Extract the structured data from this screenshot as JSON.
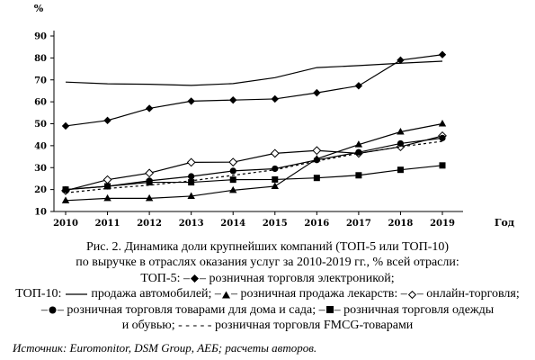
{
  "chart_data": {
    "type": "line",
    "x": [
      2010,
      2011,
      2012,
      2013,
      2014,
      2015,
      2016,
      2017,
      2018,
      2019
    ],
    "xlabel": "Год",
    "ylabel": "%",
    "ylim": [
      10,
      90
    ],
    "yticks": [
      10,
      20,
      30,
      40,
      50,
      60,
      70,
      80,
      90
    ],
    "grid": false,
    "series": [
      {
        "key": "auto",
        "marker": "none",
        "dash": "solid",
        "values": [
          69,
          68.2,
          68,
          67.5,
          68.3,
          71,
          75.6,
          76.5,
          77.6,
          78.5
        ]
      },
      {
        "key": "electronics",
        "marker": "diamond-filled",
        "dash": "solid",
        "values": [
          49,
          51.5,
          57,
          60.3,
          60.8,
          61.3,
          64.1,
          67.3,
          79,
          81.5
        ]
      },
      {
        "key": "pharmacy",
        "marker": "triangle",
        "dash": "solid",
        "values": [
          15,
          16,
          16,
          17,
          19.7,
          21.5,
          34,
          40.5,
          46.3,
          50
        ]
      },
      {
        "key": "online",
        "marker": "diamond-open",
        "dash": "solid",
        "values": [
          19.5,
          24.5,
          27.5,
          32.4,
          32.5,
          36.5,
          37.8,
          36.5,
          39.5,
          44.5
        ]
      },
      {
        "key": "home_garden",
        "marker": "circle",
        "dash": "solid",
        "values": [
          20,
          21.5,
          24,
          26,
          28.5,
          29.5,
          33.5,
          37,
          41,
          43.5
        ]
      },
      {
        "key": "apparel",
        "marker": "square",
        "dash": "solid",
        "values": [
          20,
          21.5,
          23.3,
          23.3,
          24.5,
          24.6,
          25.3,
          26.5,
          29,
          31
        ]
      },
      {
        "key": "fmcg",
        "marker": "none",
        "dash": "dashed",
        "values": [
          18.5,
          20.5,
          22,
          24,
          26.5,
          29,
          33,
          36.5,
          39.5,
          42
        ]
      }
    ],
    "caption": {
      "line1": "Рис. 2. Динамика доли крупнейших компаний (ТОП-5 или ТОП-10)",
      "line2": "по выручке в отраслях оказания услуг за 2010-2019 гг., % всей отрасли:",
      "top5_prefix": "ТОП-5: –",
      "top5_label": "– розничная торговля электроникой;",
      "top10_prefix": "ТОП-10:",
      "auto_label": "продажа автомобилей; –",
      "pharmacy_label": "– розничная продажа лекарств: –",
      "online_label": "– онлайн-торговля;",
      "line5_prefix": "–",
      "home_label": "– розничная торговля товарами для дома и сада; –",
      "apparel_label": "– розничная торговля одежды",
      "line6_text": "и обувью;",
      "fmcg_label": "розничная торговля FMCG-товарами",
      "fmcg_dashes": "- - - - -"
    },
    "source": "Источник: Euromonitor, DSM Group, АЕБ; расчеты авторов."
  }
}
